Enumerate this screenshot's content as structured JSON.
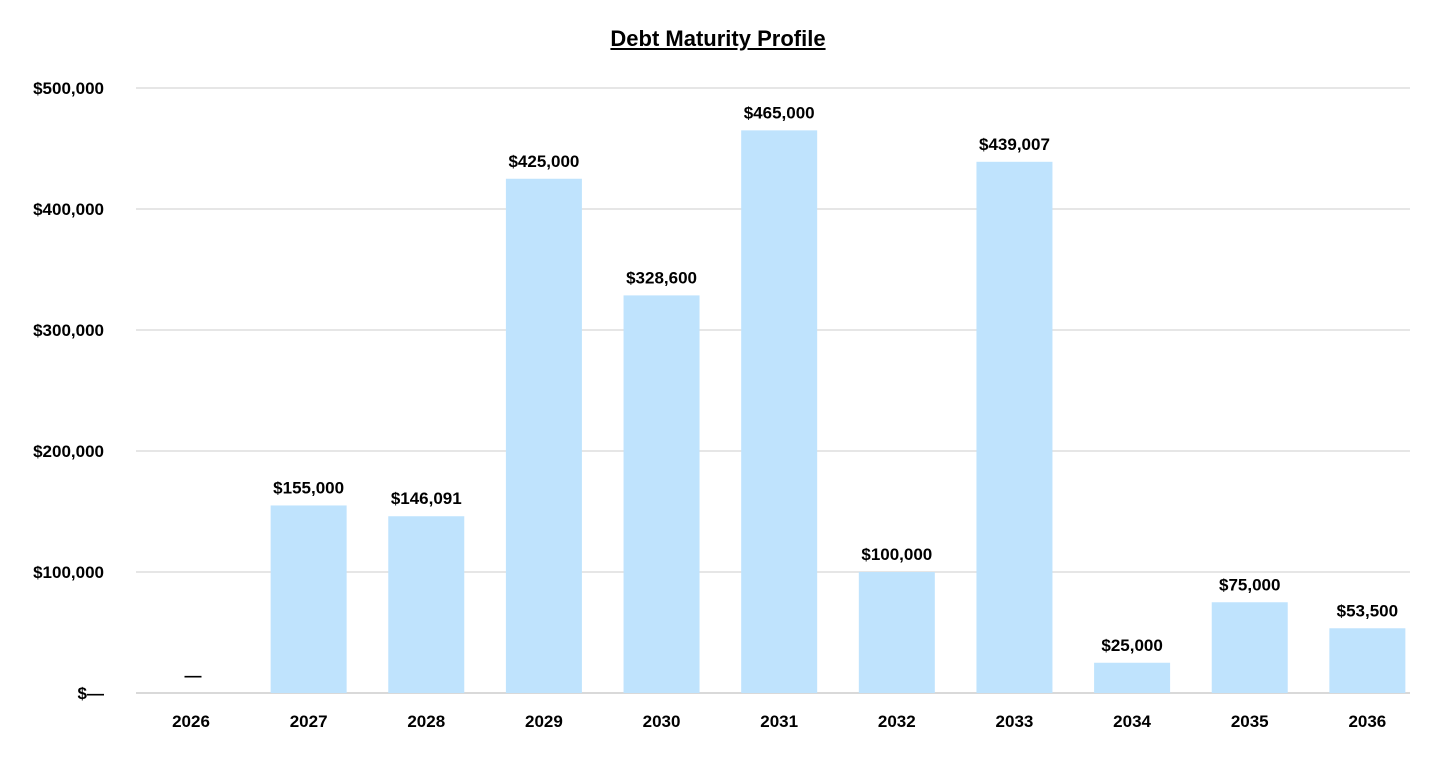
{
  "chart_data": {
    "type": "bar",
    "title": "Debt Maturity Profile",
    "xlabel": "",
    "ylabel": "",
    "categories": [
      "2026",
      "2027",
      "2028",
      "2029",
      "2030",
      "2031",
      "2032",
      "2033",
      "2034",
      "2035",
      "2036"
    ],
    "values": [
      0,
      155000,
      146091,
      425000,
      328600,
      465000,
      100000,
      439007,
      25000,
      75000,
      53500
    ],
    "value_labels": [
      "—",
      "$155,000",
      "$146,091",
      "$425,000",
      "$328,600",
      "$465,000",
      "$100,000",
      "$439,007",
      "$25,000",
      "$75,000",
      "$53,500"
    ],
    "ylim": [
      0,
      500000
    ],
    "yticks": [
      0,
      100000,
      200000,
      300000,
      400000,
      500000
    ],
    "ytick_labels": [
      "$—",
      "$100,000",
      "$200,000",
      "$300,000",
      "$400,000",
      "$500,000"
    ],
    "grid": true,
    "legend": "none",
    "colors": {
      "bar": "#bfe3fd",
      "grid": "#e6e6e6",
      "text": "#000000"
    }
  }
}
